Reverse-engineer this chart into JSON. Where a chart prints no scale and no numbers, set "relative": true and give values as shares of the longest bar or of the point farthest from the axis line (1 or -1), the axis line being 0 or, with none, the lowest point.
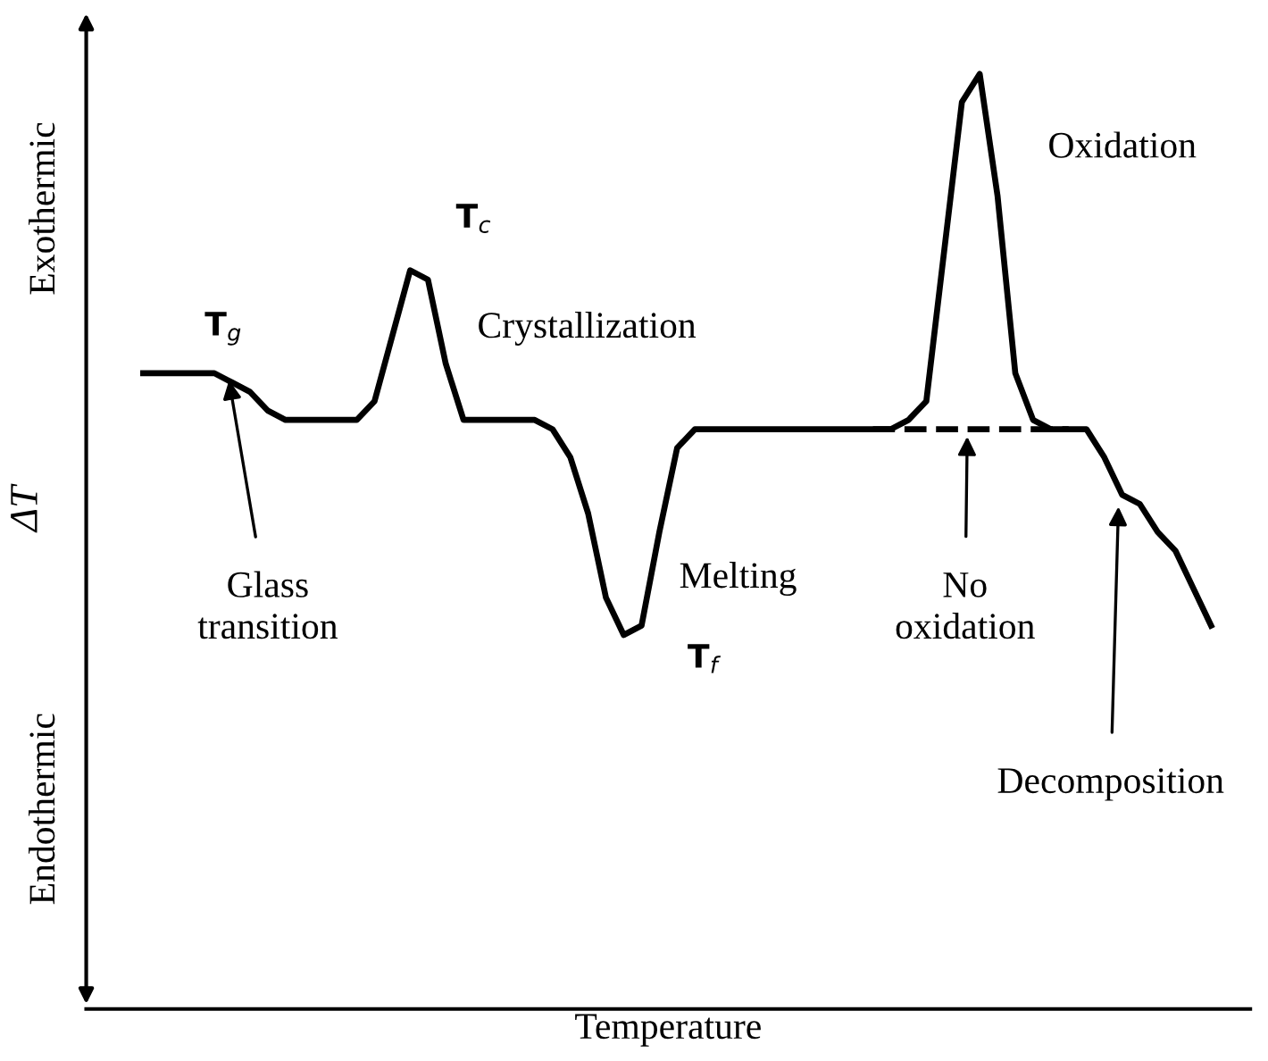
{
  "chart_data": {
    "type": "line",
    "relative": true,
    "xlabel": "Temperature",
    "ylabel": "ΔT",
    "categories": [
      null,
      null,
      null,
      null,
      null,
      null,
      null,
      null,
      null,
      null,
      null,
      null,
      null,
      null,
      null,
      null,
      null,
      null,
      null,
      null,
      null,
      null,
      null,
      null,
      null,
      null,
      null,
      null,
      null,
      null,
      null,
      null,
      null,
      null,
      null,
      null,
      null,
      null,
      null,
      null,
      null,
      null,
      null,
      null,
      null,
      null,
      null,
      null,
      null,
      null,
      null,
      null,
      null,
      null,
      null,
      null,
      null,
      null,
      null,
      null,
      null
    ],
    "series": [
      {
        "color": "#000000",
        "line_style": "solid",
        "values": [
          0.68,
          0.68,
          0.68,
          0.68,
          0.68,
          0.67,
          0.66,
          0.64,
          0.63,
          0.63,
          0.63,
          0.63,
          0.63,
          0.65,
          0.72,
          0.79,
          0.78,
          0.69,
          0.63,
          0.63,
          0.63,
          0.63,
          0.63,
          0.62,
          0.59,
          0.53,
          0.44,
          0.4,
          0.41,
          0.51,
          0.6,
          0.62,
          0.62,
          0.62,
          0.62,
          0.62,
          0.62,
          0.62,
          0.62,
          0.62,
          0.62,
          0.62,
          0.62,
          0.63,
          0.65,
          0.81,
          0.97,
          1.0,
          0.87,
          0.68,
          0.63,
          0.62,
          0.62,
          0.62,
          0.59,
          0.55,
          0.54,
          0.51,
          0.49,
          0.45,
          0.41
        ]
      },
      {
        "color": "#000000",
        "line_style": "dashed",
        "values": [
          null,
          null,
          null,
          null,
          null,
          null,
          null,
          null,
          null,
          null,
          null,
          null,
          null,
          null,
          null,
          null,
          null,
          null,
          null,
          null,
          null,
          null,
          null,
          null,
          null,
          null,
          null,
          null,
          null,
          null,
          null,
          null,
          null,
          null,
          null,
          null,
          null,
          null,
          null,
          null,
          null,
          0.62,
          0.62,
          0.62,
          0.62,
          0.62,
          0.62,
          0.62,
          0.62,
          0.62,
          0.62,
          0.62,
          0.62,
          null,
          null,
          null,
          null,
          null,
          null,
          null,
          null
        ]
      }
    ],
    "annotations": [
      "T$_{g}$",
      "T$_{c}$",
      "Crystallization",
      "Melting",
      "T$_{f}$",
      "Glass\ntransition",
      "No\noxidation",
      "Oxidation",
      "Decomposition",
      "Exothermic",
      "Endothermic"
    ]
  }
}
